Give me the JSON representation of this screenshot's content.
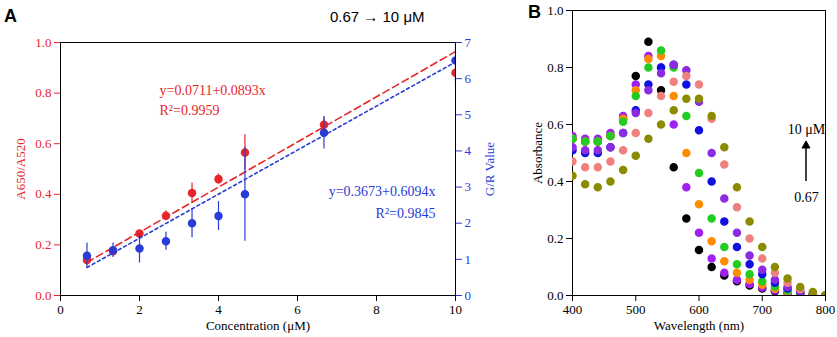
{
  "chart_data": [
    {
      "title": "A",
      "type": "scatter",
      "photo_label": "0.67 → 10 μM",
      "x_label": "Concentration (μM)",
      "y_label": "A650/A520",
      "y2_label": "G/R Value",
      "xlim": [
        0,
        10
      ],
      "xticks": [
        0,
        2,
        4,
        6,
        8,
        10
      ],
      "ylim": [
        0,
        1
      ],
      "yticks": [
        {
          "value": 0,
          "label": "0.0"
        },
        {
          "value": 0.2,
          "label": "0.2"
        },
        {
          "value": 0.4,
          "label": "0.4"
        },
        {
          "value": 0.6,
          "label": "0.6"
        },
        {
          "value": 0.8,
          "label": "0.8"
        },
        {
          "value": 1,
          "label": "1.0"
        }
      ],
      "y2lim": [
        0,
        7
      ],
      "y2ticks": [
        0,
        1,
        2,
        3,
        4,
        5,
        6,
        7
      ],
      "x": [
        0.67,
        1.33,
        2,
        2.67,
        3.33,
        4,
        4.67,
        6.67,
        10
      ],
      "series": [
        {
          "type": "scatter",
          "marker": "circle",
          "color": "#e8262a",
          "values": [
            0.14,
            0.175,
            0.245,
            0.315,
            0.405,
            0.46,
            0.565,
            0.675,
            0.88
          ],
          "errors": [
            0.02,
            0.015,
            0.01,
            0.02,
            0.04,
            0.02,
            0.07,
            0.03,
            0.05
          ]
        },
        {
          "type": "scatter",
          "marker": "circle",
          "color": "#2a3bd6",
          "axis": "y2",
          "values": [
            1.1,
            1.25,
            1.3,
            1.5,
            2.0,
            2.2,
            2.8,
            4.5,
            6.5
          ],
          "errors": [
            0.35,
            0.2,
            0.4,
            0.25,
            0.4,
            0.4,
            1.3,
            0.45,
            0.6
          ]
        },
        {
          "type": "line",
          "line_style": "dashed",
          "color": "#e8262a",
          "x": [
            0.67,
            10
          ],
          "values": [
            0.131,
            0.964
          ]
        },
        {
          "type": "line",
          "line_style": "dotted",
          "color": "#2a3bd6",
          "axis": "y2",
          "x": [
            0.67,
            10
          ],
          "values": [
            0.775,
            6.46
          ]
        }
      ],
      "annotations": [
        {
          "text": "y=0.0711+0.0893x",
          "color": "#e8262a"
        },
        {
          "text": "R²=0.9959",
          "color": "#e8262a"
        },
        {
          "text": "y=0.3673+0.6094x",
          "color": "#2a3bd6"
        },
        {
          "text": "R²=0.9845",
          "color": "#2a3bd6"
        }
      ]
    },
    {
      "title": "B",
      "type": "line",
      "x_label": "Wavelength (nm)",
      "y_label": "Absorbance",
      "xlim": [
        400,
        800
      ],
      "xticks": [
        400,
        500,
        600,
        700,
        800
      ],
      "ylim": [
        0,
        1
      ],
      "yticks": [
        {
          "value": 0,
          "label": "0.0"
        },
        {
          "value": 0.2,
          "label": "0.2"
        },
        {
          "value": 0.4,
          "label": "0.4"
        },
        {
          "value": 0.6,
          "label": "0.6"
        },
        {
          "value": 0.8,
          "label": "0.8"
        },
        {
          "value": 1,
          "label": "1.0"
        }
      ],
      "x": [
        400,
        420,
        440,
        460,
        480,
        500,
        520,
        540,
        560,
        580,
        600,
        620,
        640,
        660,
        680,
        700,
        720,
        740,
        760,
        780,
        800
      ],
      "series": [
        {
          "color": "#000000",
          "values": [
            0.55,
            0.54,
            0.54,
            0.56,
            0.62,
            0.77,
            0.89,
            0.72,
            0.45,
            0.27,
            0.16,
            0.1,
            0.07,
            0.05,
            0.035,
            0.025,
            0.015,
            0.01,
            0.005,
            0.002,
            0
          ]
        },
        {
          "color": "#a020f0",
          "values": [
            0.56,
            0.55,
            0.55,
            0.57,
            0.63,
            0.74,
            0.84,
            0.8,
            0.6,
            0.38,
            0.22,
            0.13,
            0.08,
            0.055,
            0.04,
            0.028,
            0.018,
            0.01,
            0.005,
            0.002,
            0
          ]
        },
        {
          "color": "#ff8c00",
          "values": [
            0.55,
            0.54,
            0.54,
            0.56,
            0.62,
            0.72,
            0.83,
            0.84,
            0.7,
            0.5,
            0.32,
            0.19,
            0.12,
            0.08,
            0.055,
            0.038,
            0.024,
            0.014,
            0.007,
            0.003,
            0
          ]
        },
        {
          "color": "#22cc22",
          "values": [
            0.55,
            0.54,
            0.54,
            0.56,
            0.61,
            0.7,
            0.8,
            0.86,
            0.8,
            0.63,
            0.43,
            0.27,
            0.17,
            0.11,
            0.075,
            0.05,
            0.032,
            0.018,
            0.009,
            0.004,
            0
          ]
        },
        {
          "color": "#1010e0",
          "values": [
            0.51,
            0.5,
            0.5,
            0.52,
            0.57,
            0.65,
            0.74,
            0.8,
            0.81,
            0.74,
            0.58,
            0.4,
            0.26,
            0.17,
            0.11,
            0.075,
            0.045,
            0.025,
            0.012,
            0.005,
            0
          ]
        },
        {
          "color": "#8b2be2",
          "values": [
            0.52,
            0.51,
            0.51,
            0.52,
            0.57,
            0.64,
            0.72,
            0.78,
            0.81,
            0.79,
            0.68,
            0.5,
            0.34,
            0.22,
            0.14,
            0.09,
            0.055,
            0.03,
            0.015,
            0.006,
            0
          ]
        },
        {
          "color": "#f08080",
          "values": [
            0.47,
            0.45,
            0.45,
            0.47,
            0.51,
            0.57,
            0.64,
            0.7,
            0.75,
            0.77,
            0.74,
            0.62,
            0.46,
            0.31,
            0.2,
            0.13,
            0.08,
            0.045,
            0.022,
            0.009,
            0
          ]
        },
        {
          "color": "#8b8b00",
          "values": [
            0.42,
            0.39,
            0.38,
            0.4,
            0.44,
            0.49,
            0.55,
            0.6,
            0.65,
            0.69,
            0.69,
            0.63,
            0.52,
            0.38,
            0.26,
            0.17,
            0.1,
            0.06,
            0.03,
            0.012,
            0
          ]
        }
      ],
      "annotations": [
        {
          "text": "10 μM"
        },
        {
          "text": "0.67"
        }
      ]
    }
  ]
}
